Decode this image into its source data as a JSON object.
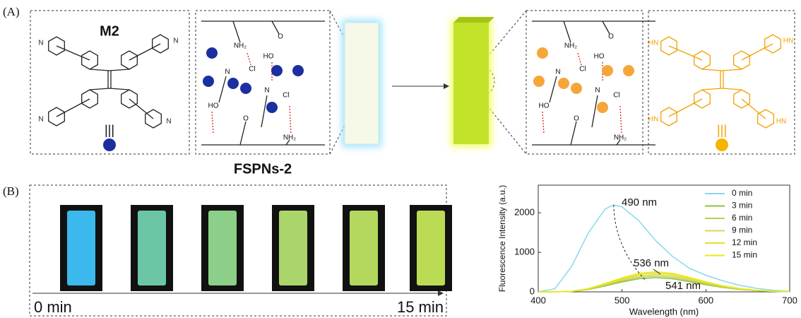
{
  "panel_a_label": "(A)",
  "panel_b_label": "(B)",
  "molecule_label": "M2",
  "material_label": "FSPNs-2",
  "equiv_symbol": "|||",
  "polymer_labels": [
    "NH₂",
    "Cl",
    "N",
    "O",
    "HO",
    "N",
    "Cl",
    "HO",
    "O",
    "NH₂"
  ],
  "m2_atoms": [
    "N",
    "N",
    "N",
    "N"
  ],
  "m2h_atoms": [
    "HN",
    "HN",
    "HN",
    "HN"
  ],
  "time_start": "0 min",
  "time_end": "15 min",
  "chart_data": {
    "type": "line",
    "x_label": "Wavelength (nm)",
    "y_label": "Fluorescence Intensity (a.u.)",
    "x": [
      400,
      420,
      440,
      460,
      480,
      490,
      500,
      520,
      540,
      560,
      580,
      600,
      620,
      640,
      660,
      680,
      700
    ],
    "series": [
      {
        "name": "0 min",
        "color": "#86d9ee",
        "values": [
          0,
          80,
          650,
          1500,
          2100,
          2200,
          2150,
          1800,
          1300,
          900,
          600,
          420,
          280,
          170,
          90,
          40,
          15
        ]
      },
      {
        "name": "3 min",
        "color": "#8fbf3a",
        "values": [
          0,
          0,
          10,
          60,
          150,
          200,
          250,
          330,
          360,
          330,
          260,
          180,
          110,
          60,
          30,
          12,
          5
        ]
      },
      {
        "name": "6 min",
        "color": "#b6cf55",
        "values": [
          0,
          0,
          11,
          67,
          167,
          222,
          278,
          367,
          400,
          367,
          289,
          200,
          122,
          67,
          33,
          13,
          6
        ]
      },
      {
        "name": "9 min",
        "color": "#d4da48",
        "values": [
          0,
          0,
          12,
          73,
          183,
          244,
          306,
          403,
          440,
          403,
          318,
          220,
          134,
          73,
          37,
          15,
          6
        ]
      },
      {
        "name": "12 min",
        "color": "#e6df2c",
        "values": [
          0,
          0,
          13,
          80,
          200,
          267,
          333,
          440,
          480,
          440,
          347,
          240,
          147,
          80,
          40,
          16,
          7
        ]
      },
      {
        "name": "15 min",
        "color": "#efe912",
        "values": [
          0,
          0,
          14,
          85,
          213,
          284,
          355,
          469,
          510,
          469,
          369,
          256,
          156,
          85,
          43,
          17,
          7
        ]
      }
    ],
    "xlim": [
      400,
      700
    ],
    "xticks": [
      400,
      500,
      600,
      700
    ],
    "ylim": [
      0,
      2700
    ],
    "yticks": [
      0,
      1000,
      2000
    ],
    "annotations": [
      "490 nm",
      "536 nm",
      "541 nm"
    ],
    "legend": "upper right"
  }
}
